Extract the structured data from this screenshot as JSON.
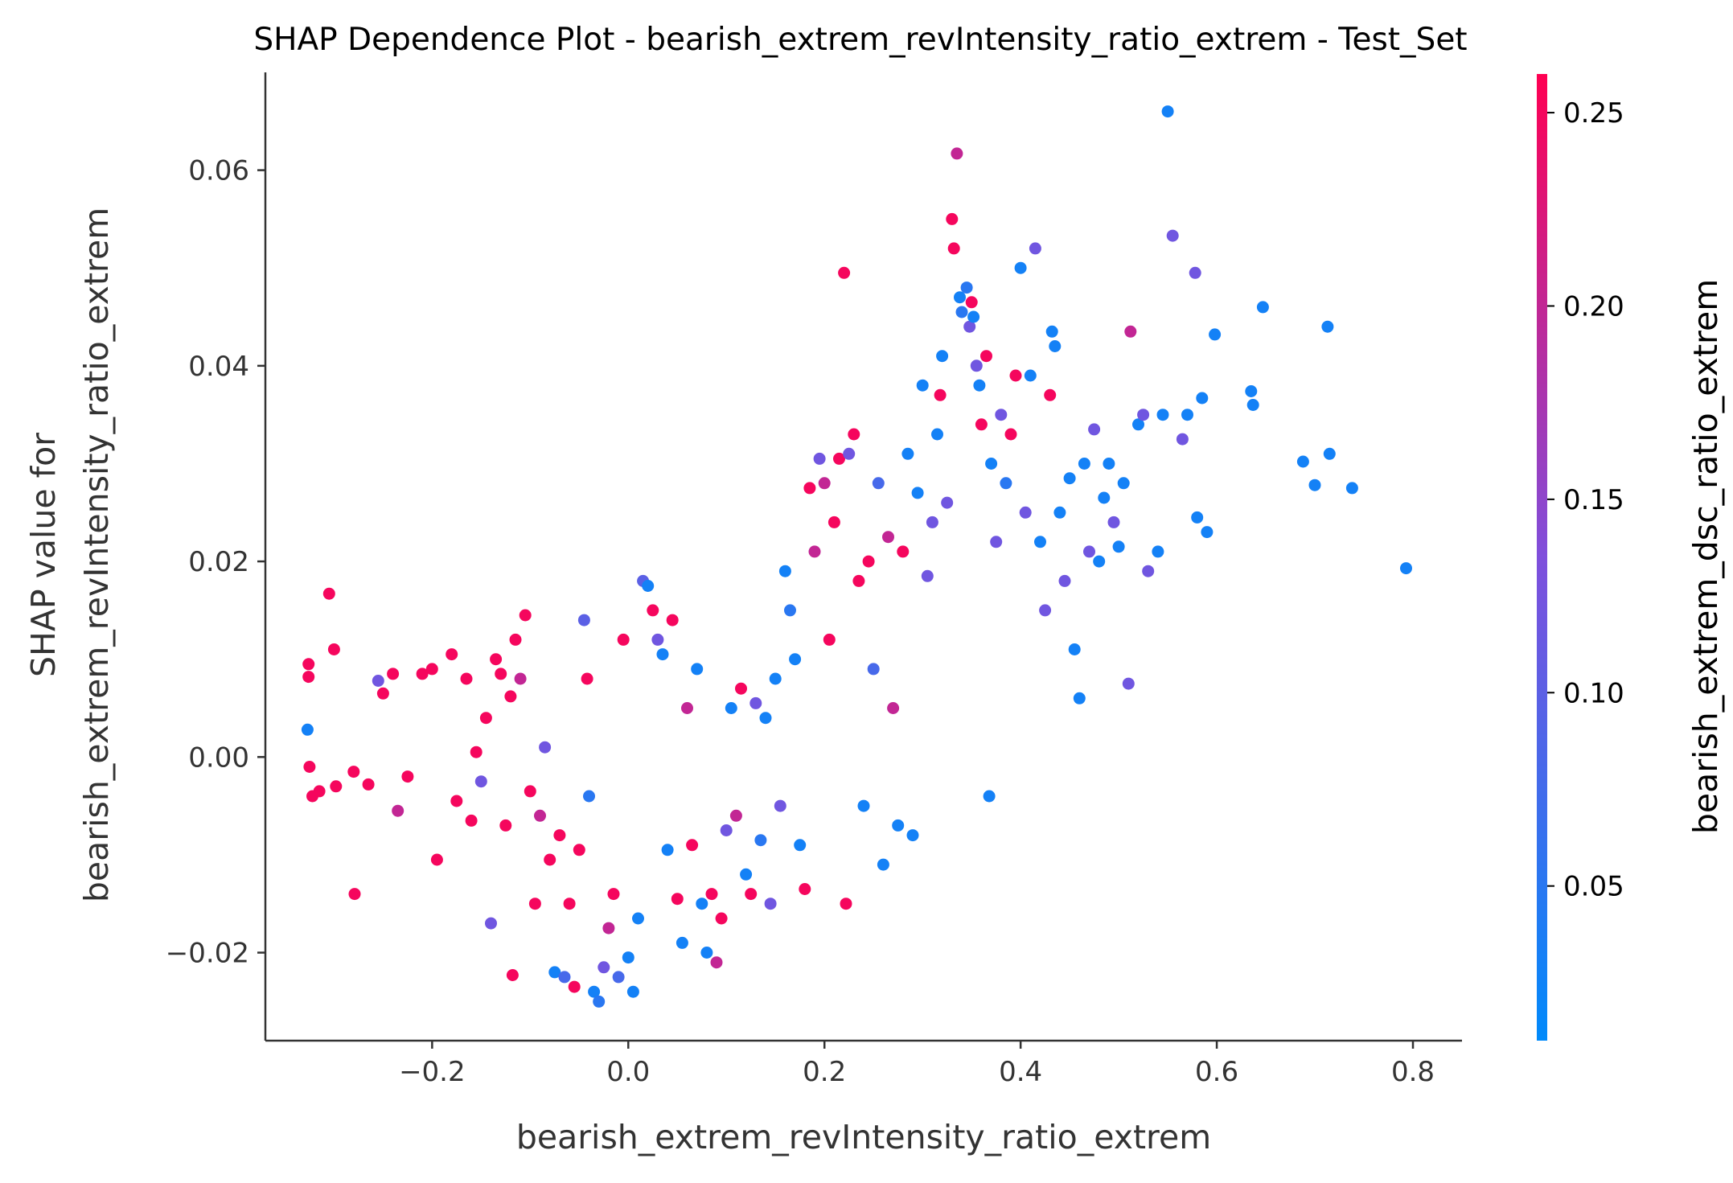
{
  "chart_data": {
    "type": "scatter",
    "title": "SHAP Dependence Plot - bearish_extrem_revIntensity_ratio_extrem - Test_Set",
    "xlabel": "bearish_extrem_revIntensity_ratio_extrem",
    "ylabel_lines": [
      "SHAP value for",
      "bearish_extrem_revIntensity_ratio_extrem"
    ],
    "xlim": [
      -0.37,
      0.85
    ],
    "ylim": [
      -0.029,
      0.07
    ],
    "x_ticks": [
      -0.2,
      0.0,
      0.2,
      0.4,
      0.6,
      0.8
    ],
    "x_tick_labels": [
      "−0.2",
      "0.0",
      "0.2",
      "0.4",
      "0.6",
      "0.8"
    ],
    "y_ticks": [
      -0.02,
      0.0,
      0.02,
      0.04,
      0.06
    ],
    "y_tick_labels": [
      "−0.02",
      "0.00",
      "0.02",
      "0.04",
      "0.06"
    ],
    "grid": false,
    "colorbar": {
      "label": "bearish_extrem_dsc_ratio_extrem",
      "range": [
        0.01,
        0.26
      ],
      "ticks": [
        0.05,
        0.1,
        0.15,
        0.2,
        0.25
      ],
      "tick_labels": [
        "0.05",
        "0.10",
        "0.15",
        "0.20",
        "0.25"
      ],
      "color_low": "#008afb",
      "color_mid": "#7f4fdc",
      "color_high": "#ff0052"
    },
    "points": [
      [
        -0.326,
        0.0095,
        0.25
      ],
      [
        -0.326,
        0.0082,
        0.25
      ],
      [
        -0.327,
        0.0028,
        0.03
      ],
      [
        -0.325,
        -0.001,
        0.25
      ],
      [
        -0.322,
        -0.004,
        0.25
      ],
      [
        -0.315,
        -0.0035,
        0.25
      ],
      [
        -0.305,
        0.0167,
        0.25
      ],
      [
        -0.3,
        0.011,
        0.25
      ],
      [
        -0.298,
        -0.003,
        0.25
      ],
      [
        -0.28,
        -0.0015,
        0.25
      ],
      [
        -0.279,
        -0.014,
        0.25
      ],
      [
        -0.265,
        -0.0028,
        0.25
      ],
      [
        -0.255,
        0.0078,
        0.12
      ],
      [
        -0.25,
        0.0065,
        0.25
      ],
      [
        -0.24,
        0.0085,
        0.25
      ],
      [
        -0.235,
        -0.0055,
        0.2
      ],
      [
        -0.225,
        -0.002,
        0.25
      ],
      [
        -0.21,
        0.0085,
        0.25
      ],
      [
        -0.2,
        0.009,
        0.25
      ],
      [
        -0.195,
        -0.0105,
        0.25
      ],
      [
        -0.18,
        0.0105,
        0.25
      ],
      [
        -0.175,
        -0.0045,
        0.25
      ],
      [
        -0.165,
        0.008,
        0.25
      ],
      [
        -0.16,
        -0.0065,
        0.25
      ],
      [
        -0.155,
        0.0005,
        0.25
      ],
      [
        -0.15,
        -0.0025,
        0.12
      ],
      [
        -0.145,
        0.004,
        0.25
      ],
      [
        -0.14,
        -0.017,
        0.12
      ],
      [
        -0.135,
        0.01,
        0.25
      ],
      [
        -0.13,
        0.0085,
        0.25
      ],
      [
        -0.125,
        -0.007,
        0.25
      ],
      [
        -0.12,
        0.0062,
        0.25
      ],
      [
        -0.118,
        -0.0223,
        0.25
      ],
      [
        -0.115,
        0.012,
        0.25
      ],
      [
        -0.11,
        0.008,
        0.2
      ],
      [
        -0.105,
        0.0145,
        0.25
      ],
      [
        -0.1,
        -0.0035,
        0.25
      ],
      [
        -0.095,
        -0.015,
        0.25
      ],
      [
        -0.09,
        -0.006,
        0.2
      ],
      [
        -0.085,
        0.001,
        0.12
      ],
      [
        -0.08,
        -0.0105,
        0.25
      ],
      [
        -0.075,
        -0.022,
        0.03
      ],
      [
        -0.07,
        -0.008,
        0.25
      ],
      [
        -0.065,
        -0.0225,
        0.08
      ],
      [
        -0.06,
        -0.015,
        0.25
      ],
      [
        -0.055,
        -0.0235,
        0.25
      ],
      [
        -0.05,
        -0.0095,
        0.25
      ],
      [
        -0.045,
        0.014,
        0.1
      ],
      [
        -0.042,
        0.008,
        0.25
      ],
      [
        -0.04,
        -0.004,
        0.05
      ],
      [
        -0.035,
        -0.024,
        0.03
      ],
      [
        -0.03,
        -0.025,
        0.05
      ],
      [
        -0.025,
        -0.0215,
        0.12
      ],
      [
        -0.02,
        -0.0175,
        0.2
      ],
      [
        -0.015,
        -0.014,
        0.25
      ],
      [
        -0.01,
        -0.0225,
        0.08
      ],
      [
        -0.005,
        0.012,
        0.25
      ],
      [
        0.0,
        -0.0205,
        0.03
      ],
      [
        0.005,
        -0.024,
        0.03
      ],
      [
        0.01,
        -0.0165,
        0.03
      ],
      [
        0.015,
        0.018,
        0.1
      ],
      [
        0.02,
        0.0175,
        0.03
      ],
      [
        0.025,
        0.015,
        0.25
      ],
      [
        0.03,
        0.012,
        0.12
      ],
      [
        0.035,
        0.0105,
        0.03
      ],
      [
        0.04,
        -0.0095,
        0.03
      ],
      [
        0.045,
        0.014,
        0.25
      ],
      [
        0.05,
        -0.0145,
        0.25
      ],
      [
        0.055,
        -0.019,
        0.03
      ],
      [
        0.06,
        0.005,
        0.2
      ],
      [
        0.065,
        -0.009,
        0.25
      ],
      [
        0.07,
        0.009,
        0.03
      ],
      [
        0.075,
        -0.015,
        0.03
      ],
      [
        0.08,
        -0.02,
        0.03
      ],
      [
        0.085,
        -0.014,
        0.25
      ],
      [
        0.09,
        -0.021,
        0.2
      ],
      [
        0.095,
        -0.0165,
        0.25
      ],
      [
        0.1,
        -0.0075,
        0.12
      ],
      [
        0.105,
        0.005,
        0.03
      ],
      [
        0.11,
        -0.006,
        0.2
      ],
      [
        0.115,
        0.007,
        0.25
      ],
      [
        0.12,
        -0.012,
        0.03
      ],
      [
        0.125,
        -0.014,
        0.25
      ],
      [
        0.13,
        0.0055,
        0.12
      ],
      [
        0.135,
        -0.0085,
        0.05
      ],
      [
        0.14,
        0.004,
        0.03
      ],
      [
        0.145,
        -0.015,
        0.12
      ],
      [
        0.15,
        0.008,
        0.03
      ],
      [
        0.155,
        -0.005,
        0.12
      ],
      [
        0.16,
        0.019,
        0.03
      ],
      [
        0.165,
        0.015,
        0.05
      ],
      [
        0.17,
        0.01,
        0.03
      ],
      [
        0.175,
        -0.009,
        0.03
      ],
      [
        0.18,
        -0.0135,
        0.25
      ],
      [
        0.185,
        0.0275,
        0.25
      ],
      [
        0.19,
        0.021,
        0.2
      ],
      [
        0.195,
        0.0305,
        0.12
      ],
      [
        0.2,
        0.028,
        0.2
      ],
      [
        0.205,
        0.012,
        0.25
      ],
      [
        0.21,
        0.024,
        0.25
      ],
      [
        0.215,
        0.0305,
        0.25
      ],
      [
        0.22,
        0.0495,
        0.25
      ],
      [
        0.222,
        -0.015,
        0.25
      ],
      [
        0.225,
        0.031,
        0.12
      ],
      [
        0.23,
        0.033,
        0.25
      ],
      [
        0.235,
        0.018,
        0.25
      ],
      [
        0.24,
        -0.005,
        0.03
      ],
      [
        0.245,
        0.02,
        0.25
      ],
      [
        0.25,
        0.009,
        0.08
      ],
      [
        0.255,
        0.028,
        0.08
      ],
      [
        0.26,
        -0.011,
        0.03
      ],
      [
        0.265,
        0.0225,
        0.2
      ],
      [
        0.27,
        0.005,
        0.2
      ],
      [
        0.275,
        -0.007,
        0.03
      ],
      [
        0.28,
        0.021,
        0.25
      ],
      [
        0.285,
        0.031,
        0.03
      ],
      [
        0.29,
        -0.008,
        0.03
      ],
      [
        0.295,
        0.027,
        0.03
      ],
      [
        0.3,
        0.038,
        0.03
      ],
      [
        0.305,
        0.0185,
        0.12
      ],
      [
        0.31,
        0.024,
        0.12
      ],
      [
        0.315,
        0.033,
        0.03
      ],
      [
        0.318,
        0.037,
        0.25
      ],
      [
        0.32,
        0.041,
        0.03
      ],
      [
        0.325,
        0.026,
        0.12
      ],
      [
        0.33,
        0.055,
        0.25
      ],
      [
        0.332,
        0.052,
        0.25
      ],
      [
        0.335,
        0.0617,
        0.2
      ],
      [
        0.338,
        0.047,
        0.03
      ],
      [
        0.34,
        0.0455,
        0.05
      ],
      [
        0.345,
        0.048,
        0.05
      ],
      [
        0.348,
        0.044,
        0.12
      ],
      [
        0.35,
        0.0465,
        0.25
      ],
      [
        0.352,
        0.045,
        0.03
      ],
      [
        0.355,
        0.04,
        0.12
      ],
      [
        0.358,
        0.038,
        0.03
      ],
      [
        0.36,
        0.034,
        0.25
      ],
      [
        0.365,
        0.041,
        0.25
      ],
      [
        0.368,
        -0.004,
        0.03
      ],
      [
        0.37,
        0.03,
        0.03
      ],
      [
        0.375,
        0.022,
        0.12
      ],
      [
        0.38,
        0.035,
        0.12
      ],
      [
        0.385,
        0.028,
        0.05
      ],
      [
        0.39,
        0.033,
        0.25
      ],
      [
        0.395,
        0.039,
        0.25
      ],
      [
        0.4,
        0.05,
        0.03
      ],
      [
        0.405,
        0.025,
        0.12
      ],
      [
        0.41,
        0.039,
        0.03
      ],
      [
        0.415,
        0.052,
        0.12
      ],
      [
        0.42,
        0.022,
        0.03
      ],
      [
        0.425,
        0.015,
        0.12
      ],
      [
        0.43,
        0.037,
        0.25
      ],
      [
        0.432,
        0.0435,
        0.03
      ],
      [
        0.435,
        0.042,
        0.03
      ],
      [
        0.44,
        0.025,
        0.03
      ],
      [
        0.445,
        0.018,
        0.12
      ],
      [
        0.45,
        0.0285,
        0.03
      ],
      [
        0.455,
        0.011,
        0.03
      ],
      [
        0.46,
        0.006,
        0.03
      ],
      [
        0.465,
        0.03,
        0.03
      ],
      [
        0.47,
        0.021,
        0.12
      ],
      [
        0.475,
        0.0335,
        0.12
      ],
      [
        0.48,
        0.02,
        0.03
      ],
      [
        0.485,
        0.0265,
        0.03
      ],
      [
        0.49,
        0.03,
        0.03
      ],
      [
        0.495,
        0.024,
        0.12
      ],
      [
        0.5,
        0.0215,
        0.03
      ],
      [
        0.505,
        0.028,
        0.03
      ],
      [
        0.51,
        0.0075,
        0.12
      ],
      [
        0.512,
        0.0435,
        0.2
      ],
      [
        0.52,
        0.034,
        0.03
      ],
      [
        0.525,
        0.035,
        0.12
      ],
      [
        0.53,
        0.019,
        0.12
      ],
      [
        0.54,
        0.021,
        0.03
      ],
      [
        0.545,
        0.035,
        0.03
      ],
      [
        0.55,
        0.066,
        0.03
      ],
      [
        0.555,
        0.0533,
        0.12
      ],
      [
        0.565,
        0.0325,
        0.12
      ],
      [
        0.57,
        0.035,
        0.03
      ],
      [
        0.578,
        0.0495,
        0.12
      ],
      [
        0.58,
        0.0245,
        0.03
      ],
      [
        0.585,
        0.0367,
        0.03
      ],
      [
        0.59,
        0.023,
        0.03
      ],
      [
        0.598,
        0.0432,
        0.03
      ],
      [
        0.635,
        0.0374,
        0.03
      ],
      [
        0.637,
        0.036,
        0.03
      ],
      [
        0.647,
        0.046,
        0.03
      ],
      [
        0.688,
        0.0302,
        0.03
      ],
      [
        0.7,
        0.0278,
        0.03
      ],
      [
        0.713,
        0.044,
        0.03
      ],
      [
        0.715,
        0.031,
        0.03
      ],
      [
        0.738,
        0.0275,
        0.03
      ],
      [
        0.793,
        0.0193,
        0.03
      ]
    ]
  }
}
